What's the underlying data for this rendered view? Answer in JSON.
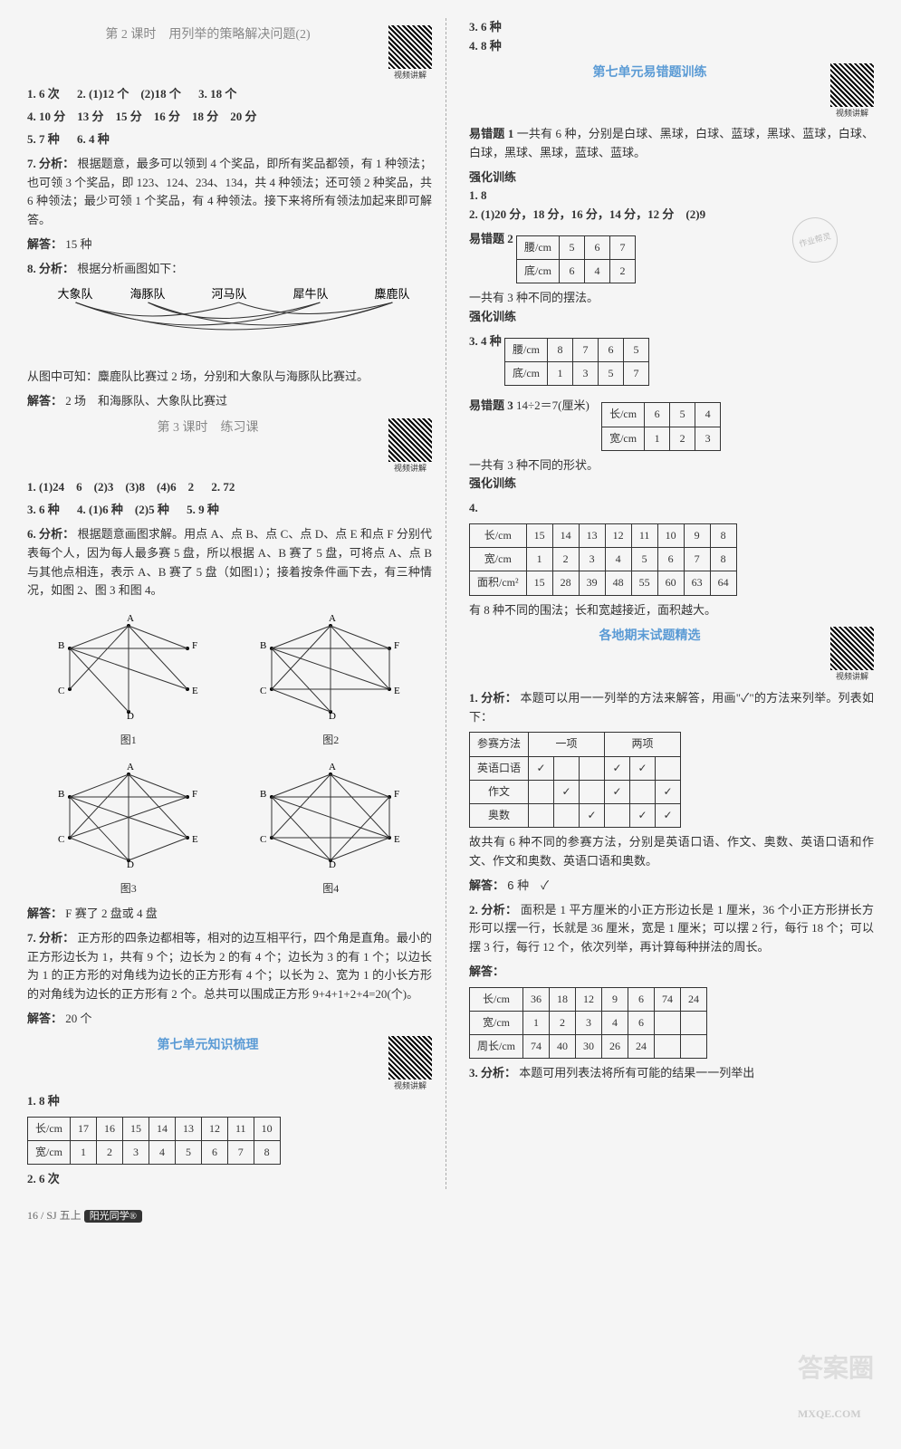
{
  "left": {
    "lesson2": {
      "title": "第 2 课时　用列举的策略解决问题(2)",
      "qr_label": "视频讲解",
      "ans": [
        "1. 6 次",
        "2. (1)12 个　(2)18 个",
        "3. 18 个",
        "4. 10 分　13 分　15 分　16 分　18 分　20 分",
        "5. 7 种",
        "6. 4 种"
      ],
      "q7_label": "7. 分析：",
      "q7_text": "根据题意，最多可以领到 4 个奖品，即所有奖品都领，有 1 种领法；也可领 3 个奖品，即 123、124、234、134，共 4 种领法；还可领 2 种奖品，共 6 种领法；最少可领 1 个奖品，有 4 种领法。接下来将所有领法加起来即可解答。",
      "q7_answer_label": "解答：",
      "q7_answer": "15 种",
      "q8_label": "8. 分析：",
      "q8_text": "根据分析画图如下：",
      "teams": [
        "大象队",
        "海豚队",
        "河马队",
        "犀牛队",
        "麋鹿队"
      ],
      "q8_conclusion": "从图中可知：麋鹿队比赛过 2 场，分别和大象队与海豚队比赛过。",
      "q8_answer_label": "解答：",
      "q8_answer": "2 场　和海豚队、大象队比赛过"
    },
    "lesson3": {
      "title": "第 3 课时　练习课",
      "qr_label": "视频讲解",
      "ans": [
        "1. (1)24　6　(2)3　(3)8　(4)6　2",
        "2. 72",
        "3. 6 种",
        "4. (1)6 种　(2)5 种",
        "5. 9 种"
      ],
      "q6_label": "6. 分析：",
      "q6_text": "根据题意画图求解。用点 A、点 B、点 C、点 D、点 E 和点 F 分别代表每个人，因为每人最多赛 5 盘，所以根据 A、B 赛了 5 盘，可将点 A、点 B 与其他点相连，表示 A、B 赛了 5 盘（如图1）；接着按条件画下去，有三种情况，如图 2、图 3 和图 4。",
      "graphs": {
        "labels": [
          "图1",
          "图2",
          "图3",
          "图4"
        ],
        "nodes": [
          "A",
          "B",
          "C",
          "D",
          "E",
          "F"
        ]
      },
      "q6_answer_label": "解答：",
      "q6_answer": "F 赛了 2 盘或 4 盘",
      "q7_label": "7. 分析：",
      "q7_text": "正方形的四条边都相等，相对的边互相平行，四个角是直角。最小的正方形边长为 1，共有 9 个；边长为 2 的有 4 个；边长为 3 的有 1 个；以边长为 1 的正方形的对角线为边长的正方形有 4 个；以长为 2、宽为 1 的小长方形的对角线为边长的正方形有 2 个。总共可以围成正方形 9+4+1+2+4=20(个)。",
      "q7_answer_label": "解答：",
      "q7_answer": "20 个"
    },
    "unit7_summary": {
      "title": "第七单元知识梳理",
      "qr_label": "视频讲解",
      "q1": "1. 8 种",
      "table1": {
        "rows": [
          [
            "长/cm",
            "17",
            "16",
            "15",
            "14",
            "13",
            "12",
            "11",
            "10"
          ],
          [
            "宽/cm",
            "1",
            "2",
            "3",
            "4",
            "5",
            "6",
            "7",
            "8"
          ]
        ]
      },
      "q2": "2. 6 次"
    }
  },
  "right": {
    "top": [
      "3. 6 种",
      "4. 8 种"
    ],
    "unit7_errors": {
      "title": "第七单元易错题训练",
      "qr_label": "视频讲解",
      "e1_label": "易错题 1",
      "e1_text": "一共有 6 种，分别是白球、黑球，白球、蓝球，黑球、蓝球，白球、白球，黑球、黑球，蓝球、蓝球。",
      "train_label": "强化训练",
      "t1": "1. 8",
      "t2": "2. (1)20 分，18 分，16 分，14 分，12 分　(2)9",
      "e2_label": "易错题 2",
      "e2_table": {
        "rows": [
          [
            "腰/cm",
            "5",
            "6",
            "7"
          ],
          [
            "底/cm",
            "6",
            "4",
            "2"
          ]
        ]
      },
      "e2_conclusion": "一共有 3 种不同的摆法。",
      "stamp_text": "作业帮灵",
      "t3": "3. 4 种",
      "t3_table": {
        "rows": [
          [
            "腰/cm",
            "8",
            "7",
            "6",
            "5"
          ],
          [
            "底/cm",
            "1",
            "3",
            "5",
            "7"
          ]
        ]
      },
      "e3_label": "易错题 3",
      "e3_eq": "14÷2＝7(厘米)",
      "e3_table": {
        "rows": [
          [
            "长/cm",
            "6",
            "5",
            "4"
          ],
          [
            "宽/cm",
            "1",
            "2",
            "3"
          ]
        ]
      },
      "e3_conclusion": "一共有 3 种不同的形状。",
      "t4_table": {
        "rows": [
          [
            "长/cm",
            "15",
            "14",
            "13",
            "12",
            "11",
            "10",
            "9",
            "8"
          ],
          [
            "宽/cm",
            "1",
            "2",
            "3",
            "4",
            "5",
            "6",
            "7",
            "8"
          ],
          [
            "面积/cm²",
            "15",
            "28",
            "39",
            "48",
            "55",
            "60",
            "63",
            "64"
          ]
        ]
      },
      "t4_conclusion": "有 8 种不同的围法；长和宽越接近，面积越大。"
    },
    "exam": {
      "title": "各地期末试题精选",
      "qr_label": "视频讲解",
      "q1_label": "1. 分析：",
      "q1_text": "本题可以用一一列举的方法来解答，用画\"✓\"的方法来列举。列表如下：",
      "q1_table": {
        "header": [
          "参赛方法",
          "一项",
          "",
          "两项",
          "",
          ""
        ],
        "rows": [
          [
            "英语口语",
            "✓",
            "",
            "",
            "✓",
            "✓",
            ""
          ],
          [
            "作文",
            "",
            "✓",
            "",
            "✓",
            "",
            "✓"
          ],
          [
            "奥数",
            "",
            "",
            "✓",
            "",
            "✓",
            "✓"
          ]
        ]
      },
      "q1_conclusion": "故共有 6 种不同的参赛方法，分别是英语口语、作文、奥数、英语口语和作文、作文和奥数、英语口语和奥数。",
      "q1_answer_label": "解答：",
      "q1_answer": "6 种　✓",
      "q2_label": "2. 分析：",
      "q2_text": "面积是 1 平方厘米的小正方形边长是 1 厘米，36 个小正方形拼长方形可以摆一行，长就是 36 厘米，宽是 1 厘米；可以摆 2 行，每行 18 个；可以摆 3 行，每行 12 个，依次列举，再计算每种拼法的周长。",
      "q2_answer_label": "解答：",
      "q2_table": {
        "rows": [
          [
            "长/cm",
            "36",
            "18",
            "12",
            "9",
            "6",
            "74",
            "24"
          ],
          [
            "宽/cm",
            "1",
            "2",
            "3",
            "4",
            "6",
            "",
            ""
          ],
          [
            "周长/cm",
            "74",
            "40",
            "30",
            "26",
            "24",
            "",
            ""
          ]
        ]
      },
      "q3_label": "3. 分析：",
      "q3_text": "本题可用列表法将所有可能的结果一一列举出"
    }
  },
  "footer": {
    "page": "16 / SJ 五上",
    "badge": "阳光同学®"
  },
  "watermark": "答案圈",
  "watermark_url": "MXQE.COM",
  "faint_wm": "作业精灵"
}
